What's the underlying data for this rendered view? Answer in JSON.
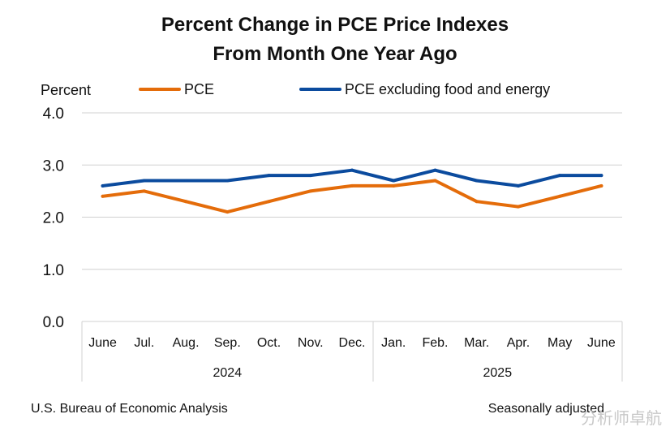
{
  "chart_data": {
    "type": "line",
    "title": [
      "Percent Change in PCE Price Indexes",
      "From Month One Year Ago"
    ],
    "ylabel": "Percent",
    "ylim": [
      0,
      4
    ],
    "yticks": [
      "0.0",
      "1.0",
      "2.0",
      "3.0",
      "4.0"
    ],
    "categories": [
      "June",
      "Jul.",
      "Aug.",
      "Sep.",
      "Oct.",
      "Nov.",
      "Dec.",
      "Jan.",
      "Feb.",
      "Mar.",
      "Apr.",
      "May",
      "June"
    ],
    "years": [
      {
        "label": "2024",
        "start": 0,
        "end": 6
      },
      {
        "label": "2025",
        "start": 7,
        "end": 12
      }
    ],
    "series": [
      {
        "name": "PCE",
        "color": "#E46C0A",
        "values": [
          2.4,
          2.5,
          2.3,
          2.1,
          2.3,
          2.5,
          2.6,
          2.6,
          2.7,
          2.3,
          2.2,
          2.4,
          2.6
        ]
      },
      {
        "name": "PCE excluding food and energy",
        "color": "#0B4B9E",
        "values": [
          2.6,
          2.7,
          2.7,
          2.7,
          2.8,
          2.8,
          2.9,
          2.7,
          2.9,
          2.7,
          2.6,
          2.8,
          2.8
        ]
      }
    ],
    "grid": true,
    "legend_position": "top"
  },
  "footer": {
    "source": "U.S. Bureau of Economic Analysis",
    "note": "Seasonally adjusted"
  },
  "watermark": "分析师卓航"
}
